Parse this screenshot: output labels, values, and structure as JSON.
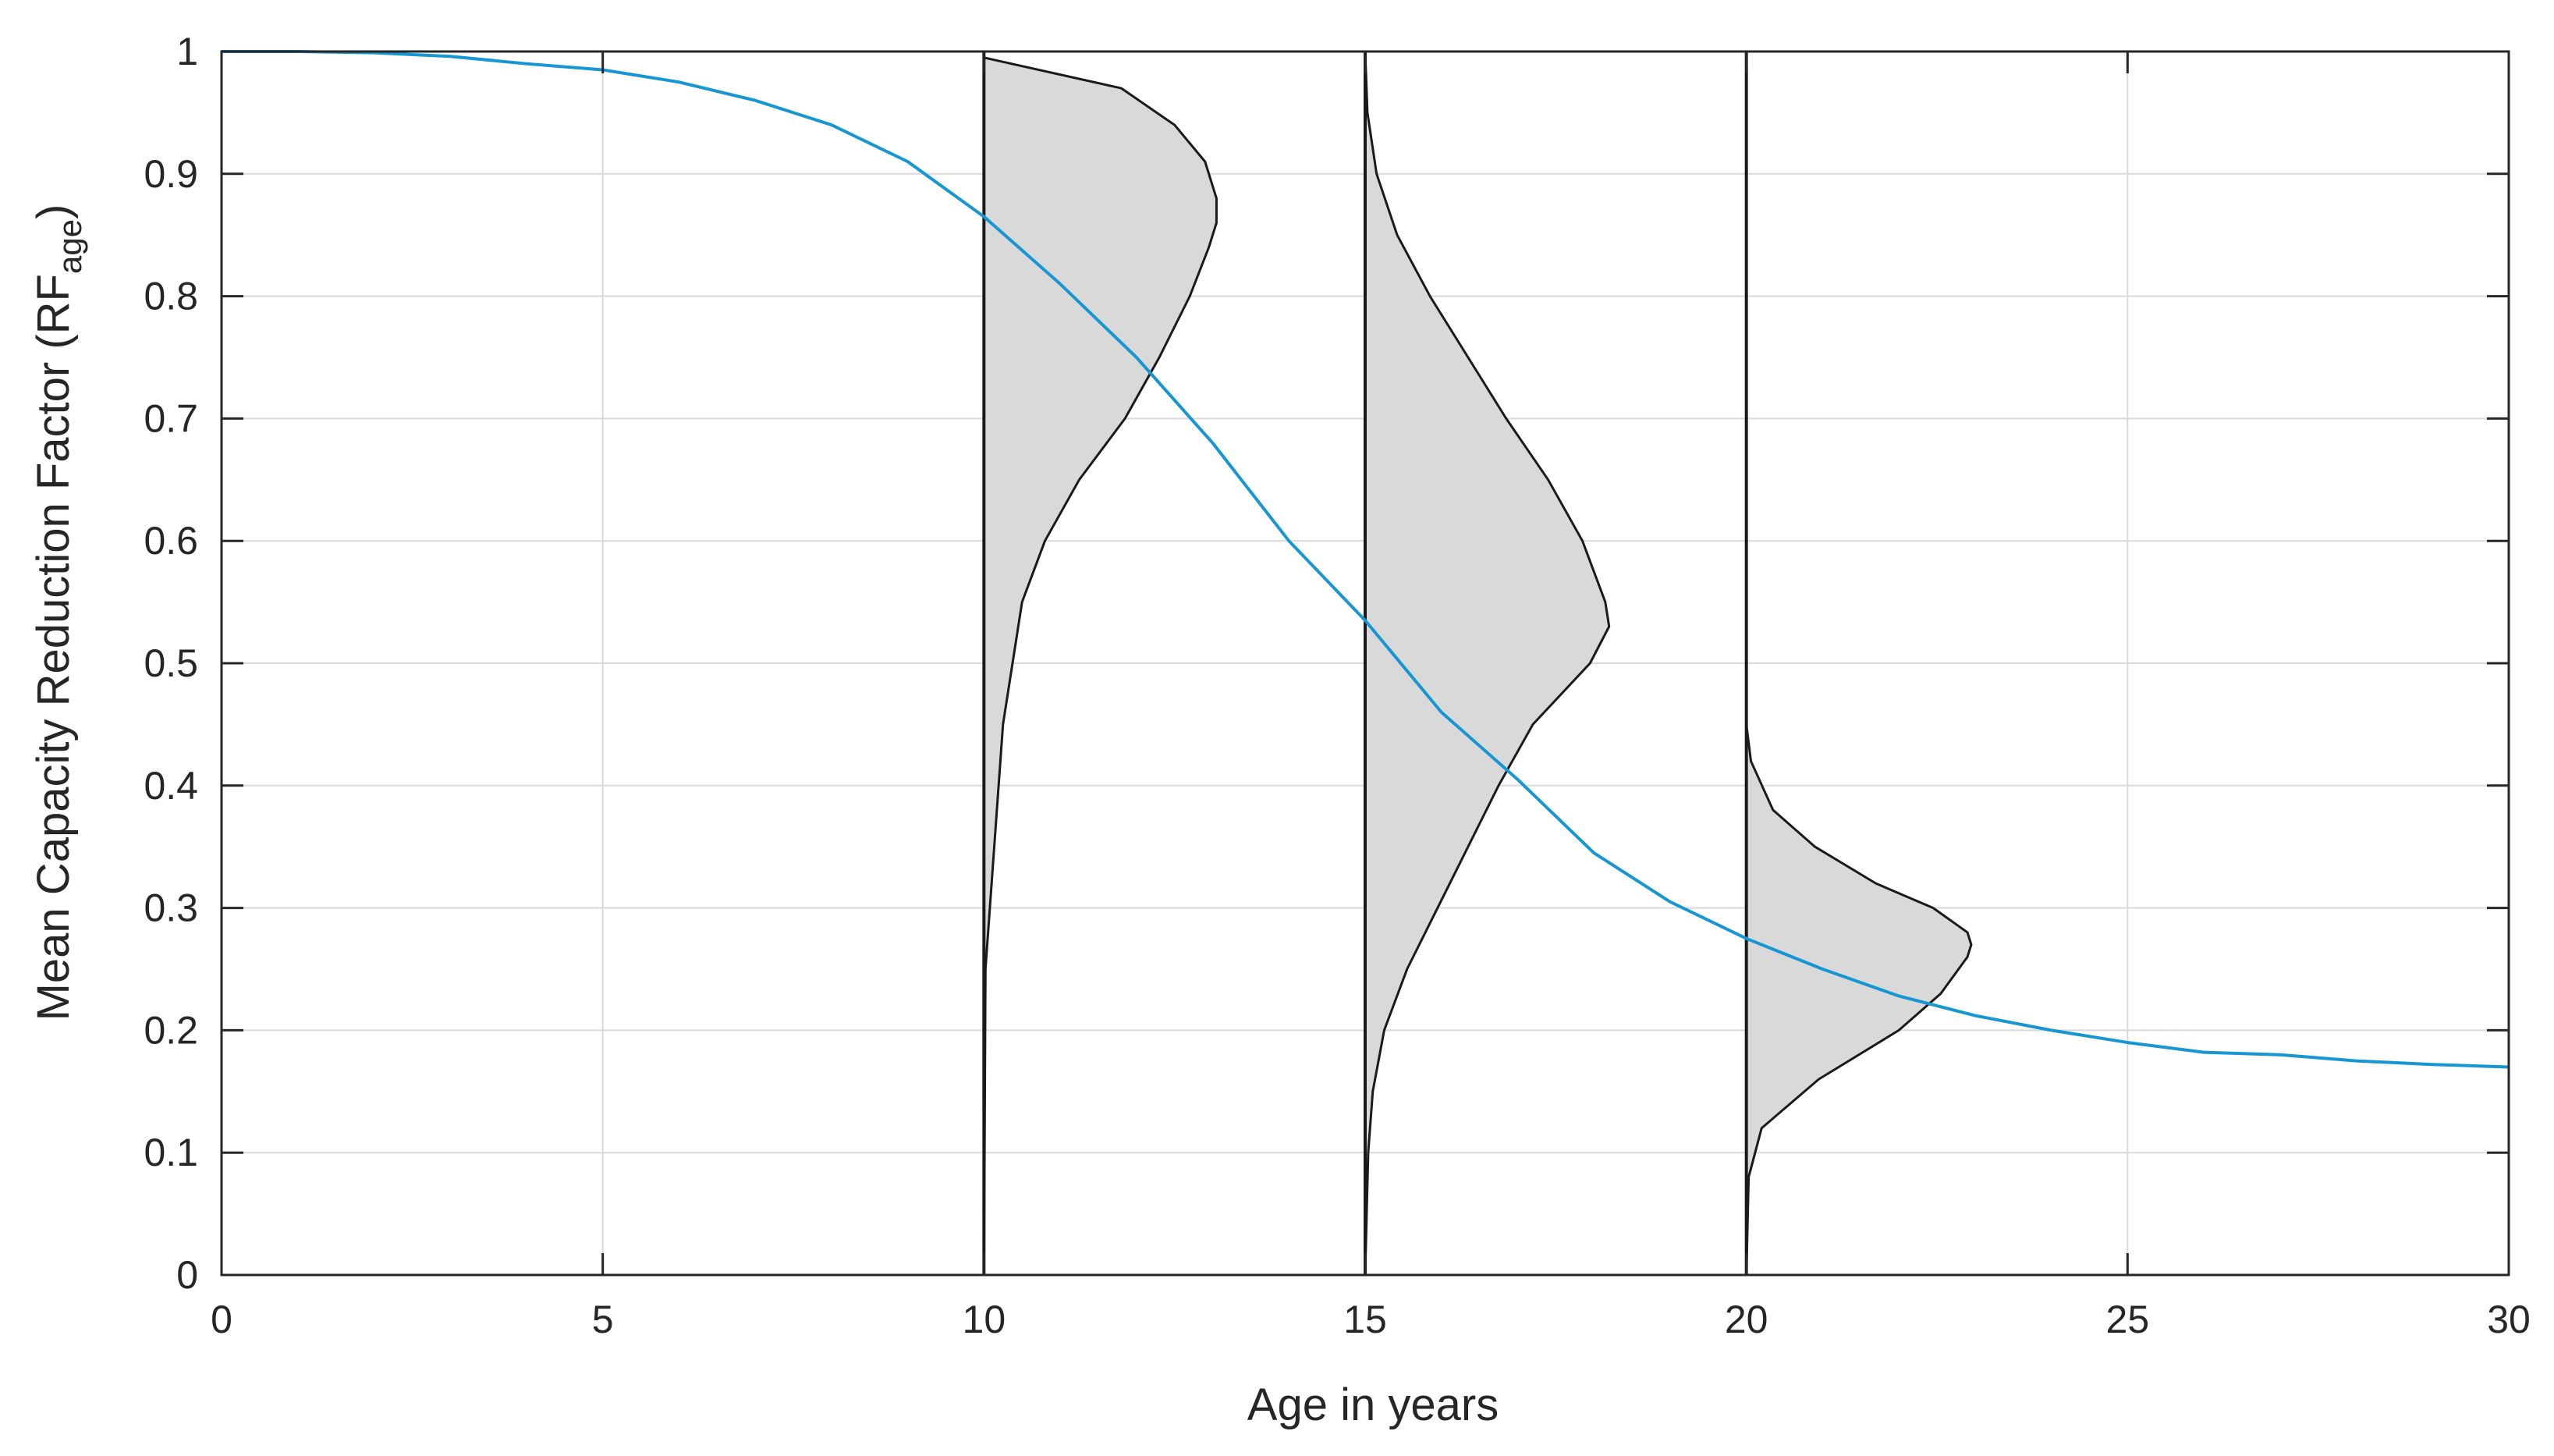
{
  "chart_data": {
    "type": "line",
    "title": "",
    "xlabel": "Age in years",
    "ylabel": {
      "main": "Mean Capacity Reduction Factor (RF",
      "subscript": "age",
      "close": ")"
    },
    "xlim": [
      0,
      30
    ],
    "ylim": [
      0,
      1
    ],
    "xticks": [
      0,
      5,
      10,
      15,
      20,
      25,
      30
    ],
    "yticks": [
      0,
      0.1,
      0.2,
      0.3,
      0.4,
      0.5,
      0.6,
      0.7,
      0.8,
      0.9,
      1
    ],
    "x_tick_labels": [
      "0",
      "5",
      "10",
      "15",
      "20",
      "25",
      "30"
    ],
    "y_tick_labels": [
      "0",
      "0.1",
      "0.2",
      "0.3",
      "0.4",
      "0.5",
      "0.6",
      "0.7",
      "0.8",
      "0.9",
      "1"
    ],
    "grid": true,
    "legend": "none",
    "colors": {
      "line": "#1696d2",
      "fill": "#d9d9d9",
      "outline": "#1a1a1a",
      "grid": "#d9d9d9",
      "axes": "#262626"
    },
    "series": [
      {
        "x": [
          0,
          1,
          2,
          3,
          4,
          5,
          6,
          7,
          8,
          9,
          10,
          11,
          12,
          13,
          14,
          15,
          16,
          17,
          18,
          19,
          20,
          21,
          22,
          23,
          24,
          25,
          26,
          27,
          28,
          29,
          30
        ],
        "values": [
          1.0,
          1.0,
          0.999,
          0.996,
          0.99,
          0.985,
          0.975,
          0.96,
          0.94,
          0.91,
          0.865,
          0.81,
          0.75,
          0.68,
          0.6,
          0.535,
          0.46,
          0.405,
          0.345,
          0.305,
          0.275,
          0.25,
          0.228,
          0.212,
          0.2,
          0.19,
          0.182,
          0.18,
          0.175,
          0.172,
          0.17
        ]
      }
    ],
    "distributions": [
      {
        "age": 10,
        "type": "beta-pdf",
        "y": [
          0,
          0.25,
          0.45,
          0.55,
          0.6,
          0.65,
          0.7,
          0.75,
          0.8,
          0.84,
          0.86,
          0.88,
          0.91,
          0.94,
          0.97,
          0.995
        ],
        "width": [
          0,
          0.02,
          0.25,
          0.5,
          0.8,
          1.25,
          1.85,
          2.3,
          2.7,
          2.95,
          3.05,
          3.05,
          2.9,
          2.5,
          1.8,
          0.0
        ]
      },
      {
        "age": 15,
        "type": "beta-pdf",
        "y": [
          0,
          0.1,
          0.15,
          0.2,
          0.25,
          0.3,
          0.35,
          0.4,
          0.45,
          0.5,
          0.53,
          0.55,
          0.6,
          0.65,
          0.7,
          0.75,
          0.8,
          0.85,
          0.9,
          0.95,
          1.0
        ],
        "width": [
          0,
          0.04,
          0.1,
          0.25,
          0.55,
          0.95,
          1.35,
          1.75,
          2.2,
          2.95,
          3.2,
          3.15,
          2.85,
          2.4,
          1.85,
          1.35,
          0.85,
          0.42,
          0.15,
          0.03,
          0.0
        ]
      },
      {
        "age": 20,
        "type": "beta-pdf",
        "y": [
          0,
          0.08,
          0.12,
          0.16,
          0.2,
          0.23,
          0.26,
          0.27,
          0.28,
          0.3,
          0.32,
          0.35,
          0.38,
          0.42,
          0.45
        ],
        "width": [
          0,
          0.03,
          0.2,
          0.95,
          2.0,
          2.55,
          2.9,
          2.95,
          2.9,
          2.45,
          1.7,
          0.9,
          0.35,
          0.06,
          0.0
        ]
      }
    ]
  }
}
